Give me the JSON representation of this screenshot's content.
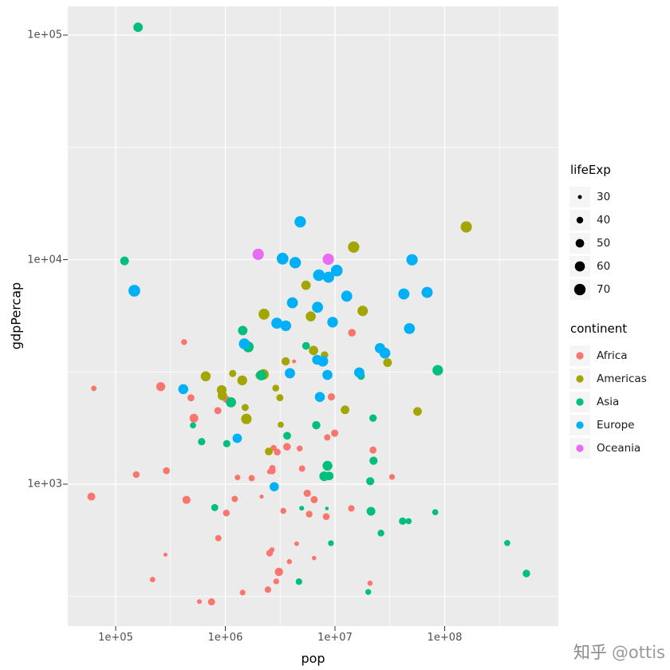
{
  "watermark": {
    "brand": "知乎",
    "handle": "@ottis",
    "brand_color": "#8a8a8a",
    "handle_color": "#9a9a9a"
  },
  "chart_data": {
    "type": "scatter",
    "title": "",
    "xlabel": "pop",
    "ylabel": "gdpPercap",
    "x_scale": "log10",
    "y_scale": "log10",
    "x_ticks": [
      100000,
      1000000,
      10000000,
      100000000
    ],
    "x_tick_labels": [
      "1e+05",
      "1e+06",
      "1e+07",
      "1e+08"
    ],
    "y_ticks": [
      1000,
      10000,
      100000
    ],
    "y_tick_labels": [
      "1e+03",
      "1e+04",
      "1e+05"
    ],
    "x_domain": [
      37000,
      1100000000
    ],
    "y_domain": [
      233,
      135000
    ],
    "grid": true,
    "panel_bg": "#EBEBEB",
    "grid_color": "#FFFFFF",
    "legend_position": "right",
    "size_legend": {
      "title": "lifeExp",
      "values": [
        30,
        40,
        50,
        60,
        70
      ]
    },
    "color_legend": {
      "title": "continent",
      "entries": [
        {
          "label": "Africa",
          "color": "#F8766D"
        },
        {
          "label": "Americas",
          "color": "#A3A500"
        },
        {
          "label": "Asia",
          "color": "#00BF7D"
        },
        {
          "label": "Europe",
          "color": "#00B0F6"
        },
        {
          "label": "Oceania",
          "color": "#E76BF3"
        }
      ]
    },
    "colors": {
      "Africa": "#F8766D",
      "Americas": "#A3A500",
      "Asia": "#00BF7D",
      "Europe": "#00B0F6",
      "Oceania": "#E76BF3"
    },
    "point_fields": [
      "pop",
      "gdpPercap",
      "lifeExp",
      "continent"
    ],
    "points": [
      [
        9279525,
        2449,
        43.1,
        "Africa"
      ],
      [
        4232095,
        3521,
        30.0,
        "Africa"
      ],
      [
        1738315,
        1063,
        38.2,
        "Africa"
      ],
      [
        442308,
        851,
        47.6,
        "Africa"
      ],
      [
        4469979,
        543,
        32.0,
        "Africa"
      ],
      [
        2445618,
        339,
        39.0,
        "Africa"
      ],
      [
        5009067,
        1173,
        38.5,
        "Africa"
      ],
      [
        1291695,
        1071,
        35.5,
        "Africa"
      ],
      [
        2682462,
        1179,
        38.1,
        "Africa"
      ],
      [
        153936,
        1103,
        40.7,
        "Africa"
      ],
      [
        14100005,
        780,
        39.1,
        "Africa"
      ],
      [
        854885,
        2126,
        42.1,
        "Africa"
      ],
      [
        2977019,
        1389,
        40.5,
        "Africa"
      ],
      [
        63149,
        2670,
        34.8,
        "Africa"
      ],
      [
        22223309,
        1419,
        41.9,
        "Africa"
      ],
      [
        216964,
        376,
        34.5,
        "Africa"
      ],
      [
        1438760,
        329,
        35.9,
        "Africa"
      ],
      [
        20860941,
        362,
        34.1,
        "Africa"
      ],
      [
        420702,
        4293,
        37.0,
        "Africa"
      ],
      [
        284320,
        485,
        30.0,
        "Africa"
      ],
      [
        5581001,
        911,
        43.1,
        "Africa"
      ],
      [
        2664249,
        510,
        33.6,
        "Africa"
      ],
      [
        580653,
        300,
        32.5,
        "Africa"
      ],
      [
        6464046,
        853,
        42.3,
        "Africa"
      ],
      [
        748747,
        299,
        42.1,
        "Africa"
      ],
      [
        863308,
        575,
        38.5,
        "Africa"
      ],
      [
        1019729,
        2387,
        42.7,
        "Africa"
      ],
      [
        4762912,
        1443,
        36.7,
        "Africa"
      ],
      [
        2917802,
        369,
        36.3,
        "Africa"
      ],
      [
        3838168,
        452,
        33.7,
        "Africa"
      ],
      [
        1022556,
        743,
        40.5,
        "Africa"
      ],
      [
        516556,
        1968,
        51.0,
        "Africa"
      ],
      [
        9939217,
        1688,
        42.9,
        "Africa"
      ],
      [
        6446316,
        469,
        31.3,
        "Africa"
      ],
      [
        485831,
        2424,
        41.7,
        "Africa"
      ],
      [
        3379468,
        761,
        37.4,
        "Africa"
      ],
      [
        33119096,
        1077,
        36.3,
        "Africa"
      ],
      [
        257700,
        2718,
        52.7,
        "Africa"
      ],
      [
        2534927,
        493,
        40.0,
        "Africa"
      ],
      [
        60011,
        880,
        46.5,
        "Africa"
      ],
      [
        2755589,
        1450,
        37.3,
        "Africa"
      ],
      [
        2143249,
        880,
        30.3,
        "Africa"
      ],
      [
        2526994,
        1136,
        33.0,
        "Africa"
      ],
      [
        14264935,
        4725,
        45.0,
        "Africa"
      ],
      [
        8504667,
        1615,
        38.6,
        "Africa"
      ],
      [
        290243,
        1148,
        41.4,
        "Africa"
      ],
      [
        8322925,
        717,
        41.2,
        "Africa"
      ],
      [
        1219113,
        859,
        38.6,
        "Africa"
      ],
      [
        3647735,
        1468,
        44.6,
        "Africa"
      ],
      [
        5824797,
        735,
        40.0,
        "Africa"
      ],
      [
        2672000,
        1147,
        42.0,
        "Africa"
      ],
      [
        3080907,
        407,
        48.5,
        "Africa"
      ],
      [
        17876956,
        5911,
        62.5,
        "Americas"
      ],
      [
        2883315,
        2677,
        40.4,
        "Americas"
      ],
      [
        56602560,
        2109,
        50.4,
        "Americas"
      ],
      [
        14785584,
        11367,
        68.8,
        "Americas"
      ],
      [
        6377619,
        3940,
        54.7,
        "Americas"
      ],
      [
        12350771,
        2144,
        50.6,
        "Americas"
      ],
      [
        926317,
        2627,
        57.2,
        "Americas"
      ],
      [
        6007797,
        5587,
        59.4,
        "Americas"
      ],
      [
        2491346,
        1398,
        45.9,
        "Americas"
      ],
      [
        3548753,
        3522,
        48.4,
        "Americas"
      ],
      [
        2042865,
        3048,
        45.3,
        "Americas"
      ],
      [
        3146381,
        2428,
        42.0,
        "Americas"
      ],
      [
        3201488,
        1840,
        37.6,
        "Americas"
      ],
      [
        1517453,
        2195,
        41.9,
        "Americas"
      ],
      [
        1426095,
        2899,
        58.5,
        "Americas"
      ],
      [
        30144317,
        3478,
        50.8,
        "Americas"
      ],
      [
        1165790,
        3112,
        42.3,
        "Americas"
      ],
      [
        940080,
        2480,
        55.2,
        "Americas"
      ],
      [
        1555876,
        1952,
        62.6,
        "Americas"
      ],
      [
        8025700,
        3759,
        43.9,
        "Americas"
      ],
      [
        2227000,
        3081,
        64.3,
        "Americas"
      ],
      [
        662850,
        3023,
        59.1,
        "Americas"
      ],
      [
        157553000,
        13990,
        68.4,
        "Americas"
      ],
      [
        2252965,
        5717,
        66.1,
        "Americas"
      ],
      [
        5439568,
        7690,
        55.1,
        "Americas"
      ],
      [
        8425333,
        779,
        28.8,
        "Asia"
      ],
      [
        120447,
        9867,
        50.9,
        "Asia"
      ],
      [
        46886859,
        684,
        37.5,
        "Asia"
      ],
      [
        4693836,
        368,
        39.4,
        "Asia"
      ],
      [
        556263527,
        400,
        44.0,
        "Asia"
      ],
      [
        2125900,
        3054,
        61.0,
        "Asia"
      ],
      [
        372000000,
        547,
        37.4,
        "Asia"
      ],
      [
        82052000,
        750,
        37.5,
        "Asia"
      ],
      [
        17272000,
        3035,
        44.9,
        "Asia"
      ],
      [
        5441766,
        4129,
        45.3,
        "Asia"
      ],
      [
        1620914,
        4087,
        65.4,
        "Asia"
      ],
      [
        86459025,
        3217,
        63.0,
        "Asia"
      ],
      [
        607914,
        1547,
        43.2,
        "Asia"
      ],
      [
        8865488,
        1088,
        50.1,
        "Asia"
      ],
      [
        20947571,
        1031,
        47.5,
        "Asia"
      ],
      [
        160000,
        108382,
        55.6,
        "Asia"
      ],
      [
        1439529,
        4834,
        55.9,
        "Asia"
      ],
      [
        6748378,
        1831,
        48.5,
        "Asia"
      ],
      [
        800663,
        786,
        42.2,
        "Asia"
      ],
      [
        20092996,
        331,
        36.3,
        "Asia"
      ],
      [
        9182536,
        546,
        36.2,
        "Asia"
      ],
      [
        507833,
        1828,
        37.6,
        "Asia"
      ],
      [
        41346560,
        684,
        43.4,
        "Asia"
      ],
      [
        22438691,
        1272,
        47.8,
        "Asia"
      ],
      [
        4005677,
        6460,
        39.9,
        "Asia"
      ],
      [
        1127000,
        2315,
        60.4,
        "Asia"
      ],
      [
        7982342,
        1084,
        57.6,
        "Asia"
      ],
      [
        3661549,
        1643,
        45.9,
        "Asia"
      ],
      [
        8550362,
        1207,
        58.5,
        "Asia"
      ],
      [
        21289402,
        757,
        50.9,
        "Asia"
      ],
      [
        22235677,
        1969,
        43.6,
        "Asia"
      ],
      [
        26246839,
        605,
        40.4,
        "Asia"
      ],
      [
        1030585,
        1515,
        43.2,
        "Asia"
      ],
      [
        4963829,
        782,
        32.5,
        "Asia"
      ],
      [
        1282697,
        1601,
        55.2,
        "Europe"
      ],
      [
        6927772,
        6137,
        66.8,
        "Europe"
      ],
      [
        8730405,
        8343,
        68.0,
        "Europe"
      ],
      [
        2791000,
        974,
        53.8,
        "Europe"
      ],
      [
        7274900,
        2444,
        59.6,
        "Europe"
      ],
      [
        3882229,
        3119,
        61.2,
        "Europe"
      ],
      [
        12790000,
        6876,
        66.9,
        "Europe"
      ],
      [
        4334000,
        9692,
        70.8,
        "Europe"
      ],
      [
        4090500,
        6425,
        66.6,
        "Europe"
      ],
      [
        42459667,
        7030,
        67.4,
        "Europe"
      ],
      [
        69145952,
        7144,
        67.5,
        "Europe"
      ],
      [
        7733250,
        3530,
        65.9,
        "Europe"
      ],
      [
        9504000,
        5264,
        64.0,
        "Europe"
      ],
      [
        147962,
        7268,
        72.5,
        "Europe"
      ],
      [
        2952156,
        5210,
        66.9,
        "Europe"
      ],
      [
        47666000,
        4931,
        65.9,
        "Europe"
      ],
      [
        413834,
        2648,
        59.2,
        "Europe"
      ],
      [
        10381988,
        8942,
        72.1,
        "Europe"
      ],
      [
        3327728,
        10095,
        72.7,
        "Europe"
      ],
      [
        25730551,
        4029,
        61.3,
        "Europe"
      ],
      [
        8526050,
        3068,
        59.8,
        "Europe"
      ],
      [
        16630000,
        3144,
        61.1,
        "Europe"
      ],
      [
        6860147,
        3581,
        58.0,
        "Europe"
      ],
      [
        3558137,
        5074,
        64.4,
        "Europe"
      ],
      [
        1489518,
        4215,
        65.6,
        "Europe"
      ],
      [
        28549870,
        3834,
        64.9,
        "Europe"
      ],
      [
        7124673,
        8528,
        71.9,
        "Europe"
      ],
      [
        4815000,
        14734,
        69.6,
        "Europe"
      ],
      [
        50430000,
        9980,
        69.2,
        "Europe"
      ],
      [
        8691212,
        10040,
        69.1,
        "Oceania"
      ],
      [
        1994794,
        10557,
        69.4,
        "Oceania"
      ]
    ]
  }
}
